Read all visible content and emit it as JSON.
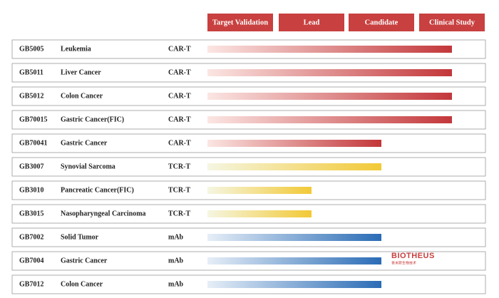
{
  "stages": [
    "Target Validation",
    "Lead",
    "Candidate",
    "Clinical Study"
  ],
  "stage_color": "#c8403f",
  "rows": [
    {
      "code": "GB5005",
      "indication": "Leukemia",
      "modality": "CAR-T",
      "stage": 4,
      "colors": [
        "#fbe6e3",
        "#c3373a"
      ]
    },
    {
      "code": "GB5011",
      "indication": "Liver Cancer",
      "modality": "CAR-T",
      "stage": 4,
      "colors": [
        "#fbe6e3",
        "#c3373a"
      ]
    },
    {
      "code": "GB5012",
      "indication": "Colon Cancer",
      "modality": "CAR-T",
      "stage": 4,
      "colors": [
        "#fbe6e3",
        "#c3373a"
      ]
    },
    {
      "code": "GB70015",
      "indication": "Gastric Cancer(FIC)",
      "modality": "CAR-T",
      "stage": 4,
      "colors": [
        "#fbe6e3",
        "#c3373a"
      ]
    },
    {
      "code": "GB70041",
      "indication": "Gastric Cancer",
      "modality": "CAR-T",
      "stage": 3,
      "colors": [
        "#fbe6e3",
        "#c3373a"
      ]
    },
    {
      "code": "GB3007",
      "indication": "Synovial Sarcoma",
      "modality": "TCR-T",
      "stage": 3,
      "colors": [
        "#f5f6e2",
        "#f2c936"
      ]
    },
    {
      "code": "GB3010",
      "indication": "Pancreatic Cancer(FIC)",
      "modality": "TCR-T",
      "stage": 2,
      "colors": [
        "#f5f6e2",
        "#f2c936"
      ]
    },
    {
      "code": "GB3015",
      "indication": "Nasopharyngeal Carcinoma",
      "modality": "TCR-T",
      "stage": 2,
      "colors": [
        "#f5f6e2",
        "#f2c936"
      ]
    },
    {
      "code": "GB7002",
      "indication": "Solid Tumor",
      "modality": "mAb",
      "stage": 3,
      "colors": [
        "#e6eef7",
        "#2a6cb6"
      ]
    },
    {
      "code": "GB7004",
      "indication": "Gastric Cancer",
      "modality": "mAb",
      "stage": 3,
      "colors": [
        "#e6eef7",
        "#2a6cb6"
      ]
    },
    {
      "code": "GB7012",
      "indication": "Colon Cancer",
      "modality": "mAb",
      "stage": 3,
      "colors": [
        "#e6eef7",
        "#2a6cb6"
      ]
    }
  ],
  "logo": {
    "name": "BIOTHEUS",
    "subtitle": "普米斯生物技术"
  }
}
